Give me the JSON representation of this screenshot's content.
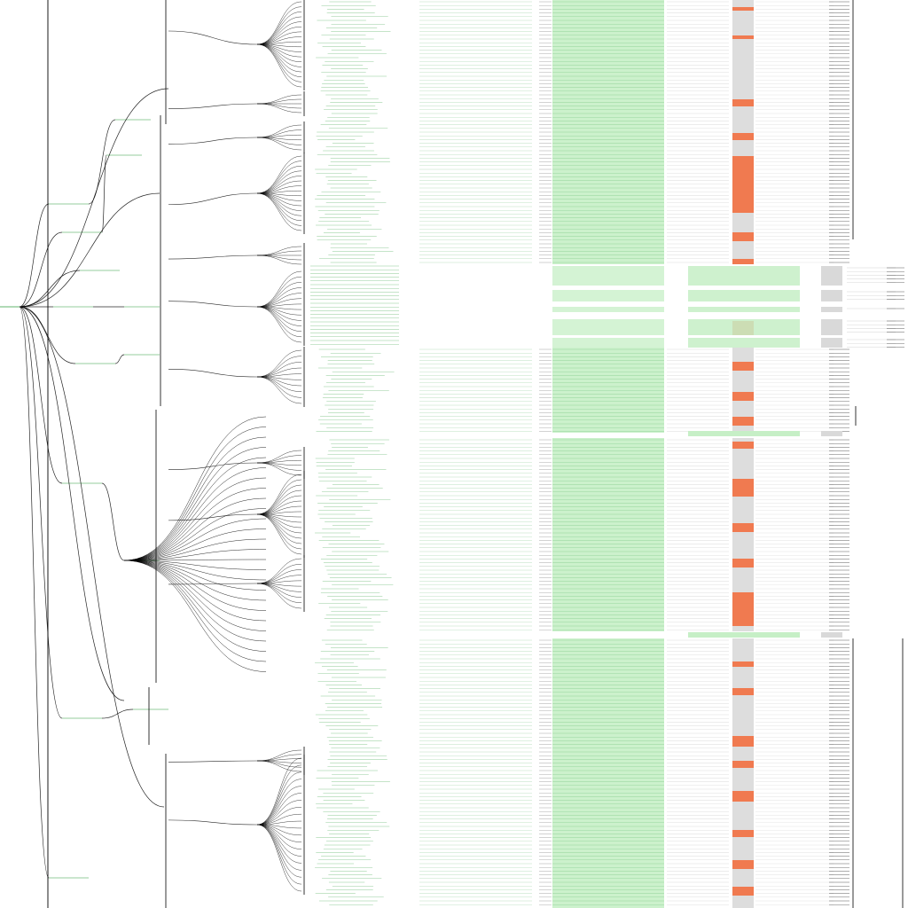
{
  "diagram": {
    "type": "hierarchical-tree",
    "orientation": "left-to-right",
    "colors": {
      "background": "#ffffff",
      "edge": "#000000",
      "node_label": "#2e9e3e",
      "node_fill_green": "#c6efc6",
      "node_fill_orange": "#f07a50",
      "node_fill_grey": "#d9d9d9",
      "detail_text": "#9a9a9a"
    }
  }
}
